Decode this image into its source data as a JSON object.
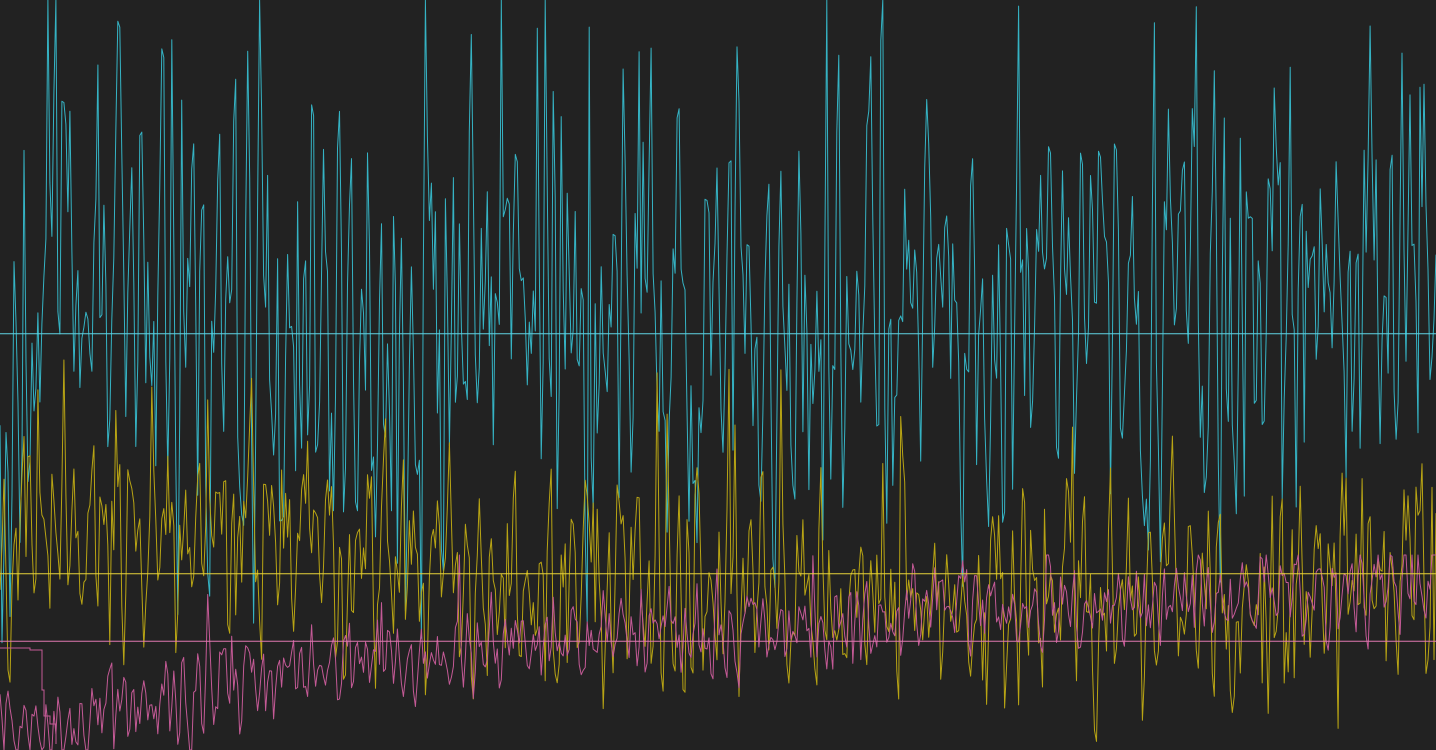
{
  "chart_data": {
    "type": "line",
    "title": "",
    "xlabel": "",
    "ylabel": "",
    "grid": false,
    "legend": "none",
    "samples": 720,
    "xlim": [
      0,
      720
    ],
    "ylim": [
      0,
      100
    ],
    "series": [
      {
        "color": "#35b3c4",
        "reference_line": 55.5,
        "reference_color": "#5fd3e3",
        "anchors": [
          [
            0,
            28
          ],
          [
            3,
            30
          ],
          [
            15,
            55
          ],
          [
            25,
            70
          ],
          [
            60,
            62
          ],
          [
            120,
            58
          ],
          [
            180,
            56
          ],
          [
            240,
            57
          ],
          [
            300,
            58
          ],
          [
            360,
            59
          ],
          [
            420,
            60
          ],
          [
            480,
            61
          ],
          [
            540,
            62
          ],
          [
            600,
            63
          ],
          [
            660,
            64
          ],
          [
            719,
            65
          ]
        ],
        "spread": 14,
        "spike_max": 100
      },
      {
        "color": "#b8a414",
        "reference_line": 23.5,
        "reference_color": "#e6d23a",
        "anchors": [
          [
            0,
            20
          ],
          [
            15,
            32
          ],
          [
            60,
            29
          ],
          [
            120,
            27
          ],
          [
            180,
            25
          ],
          [
            240,
            23
          ],
          [
            300,
            22
          ],
          [
            360,
            21.5
          ],
          [
            420,
            21
          ],
          [
            480,
            21
          ],
          [
            540,
            20.5
          ],
          [
            600,
            20.5
          ],
          [
            660,
            21.5
          ],
          [
            719,
            24
          ]
        ],
        "spread": 6.5,
        "spike_max": 52
      },
      {
        "color": "#c45a96",
        "reference_line": 14.5,
        "reference_color": "#e078b0",
        "anchors": [
          [
            0,
            4
          ],
          [
            16,
            2
          ],
          [
            40,
            3
          ],
          [
            60,
            6
          ],
          [
            120,
            9
          ],
          [
            180,
            11
          ],
          [
            240,
            13
          ],
          [
            300,
            15
          ],
          [
            360,
            16
          ],
          [
            420,
            17
          ],
          [
            480,
            18
          ],
          [
            540,
            19
          ],
          [
            600,
            20
          ],
          [
            660,
            21
          ],
          [
            719,
            22
          ]
        ],
        "spread": 2.6,
        "spike_max": 26
      }
    ]
  }
}
